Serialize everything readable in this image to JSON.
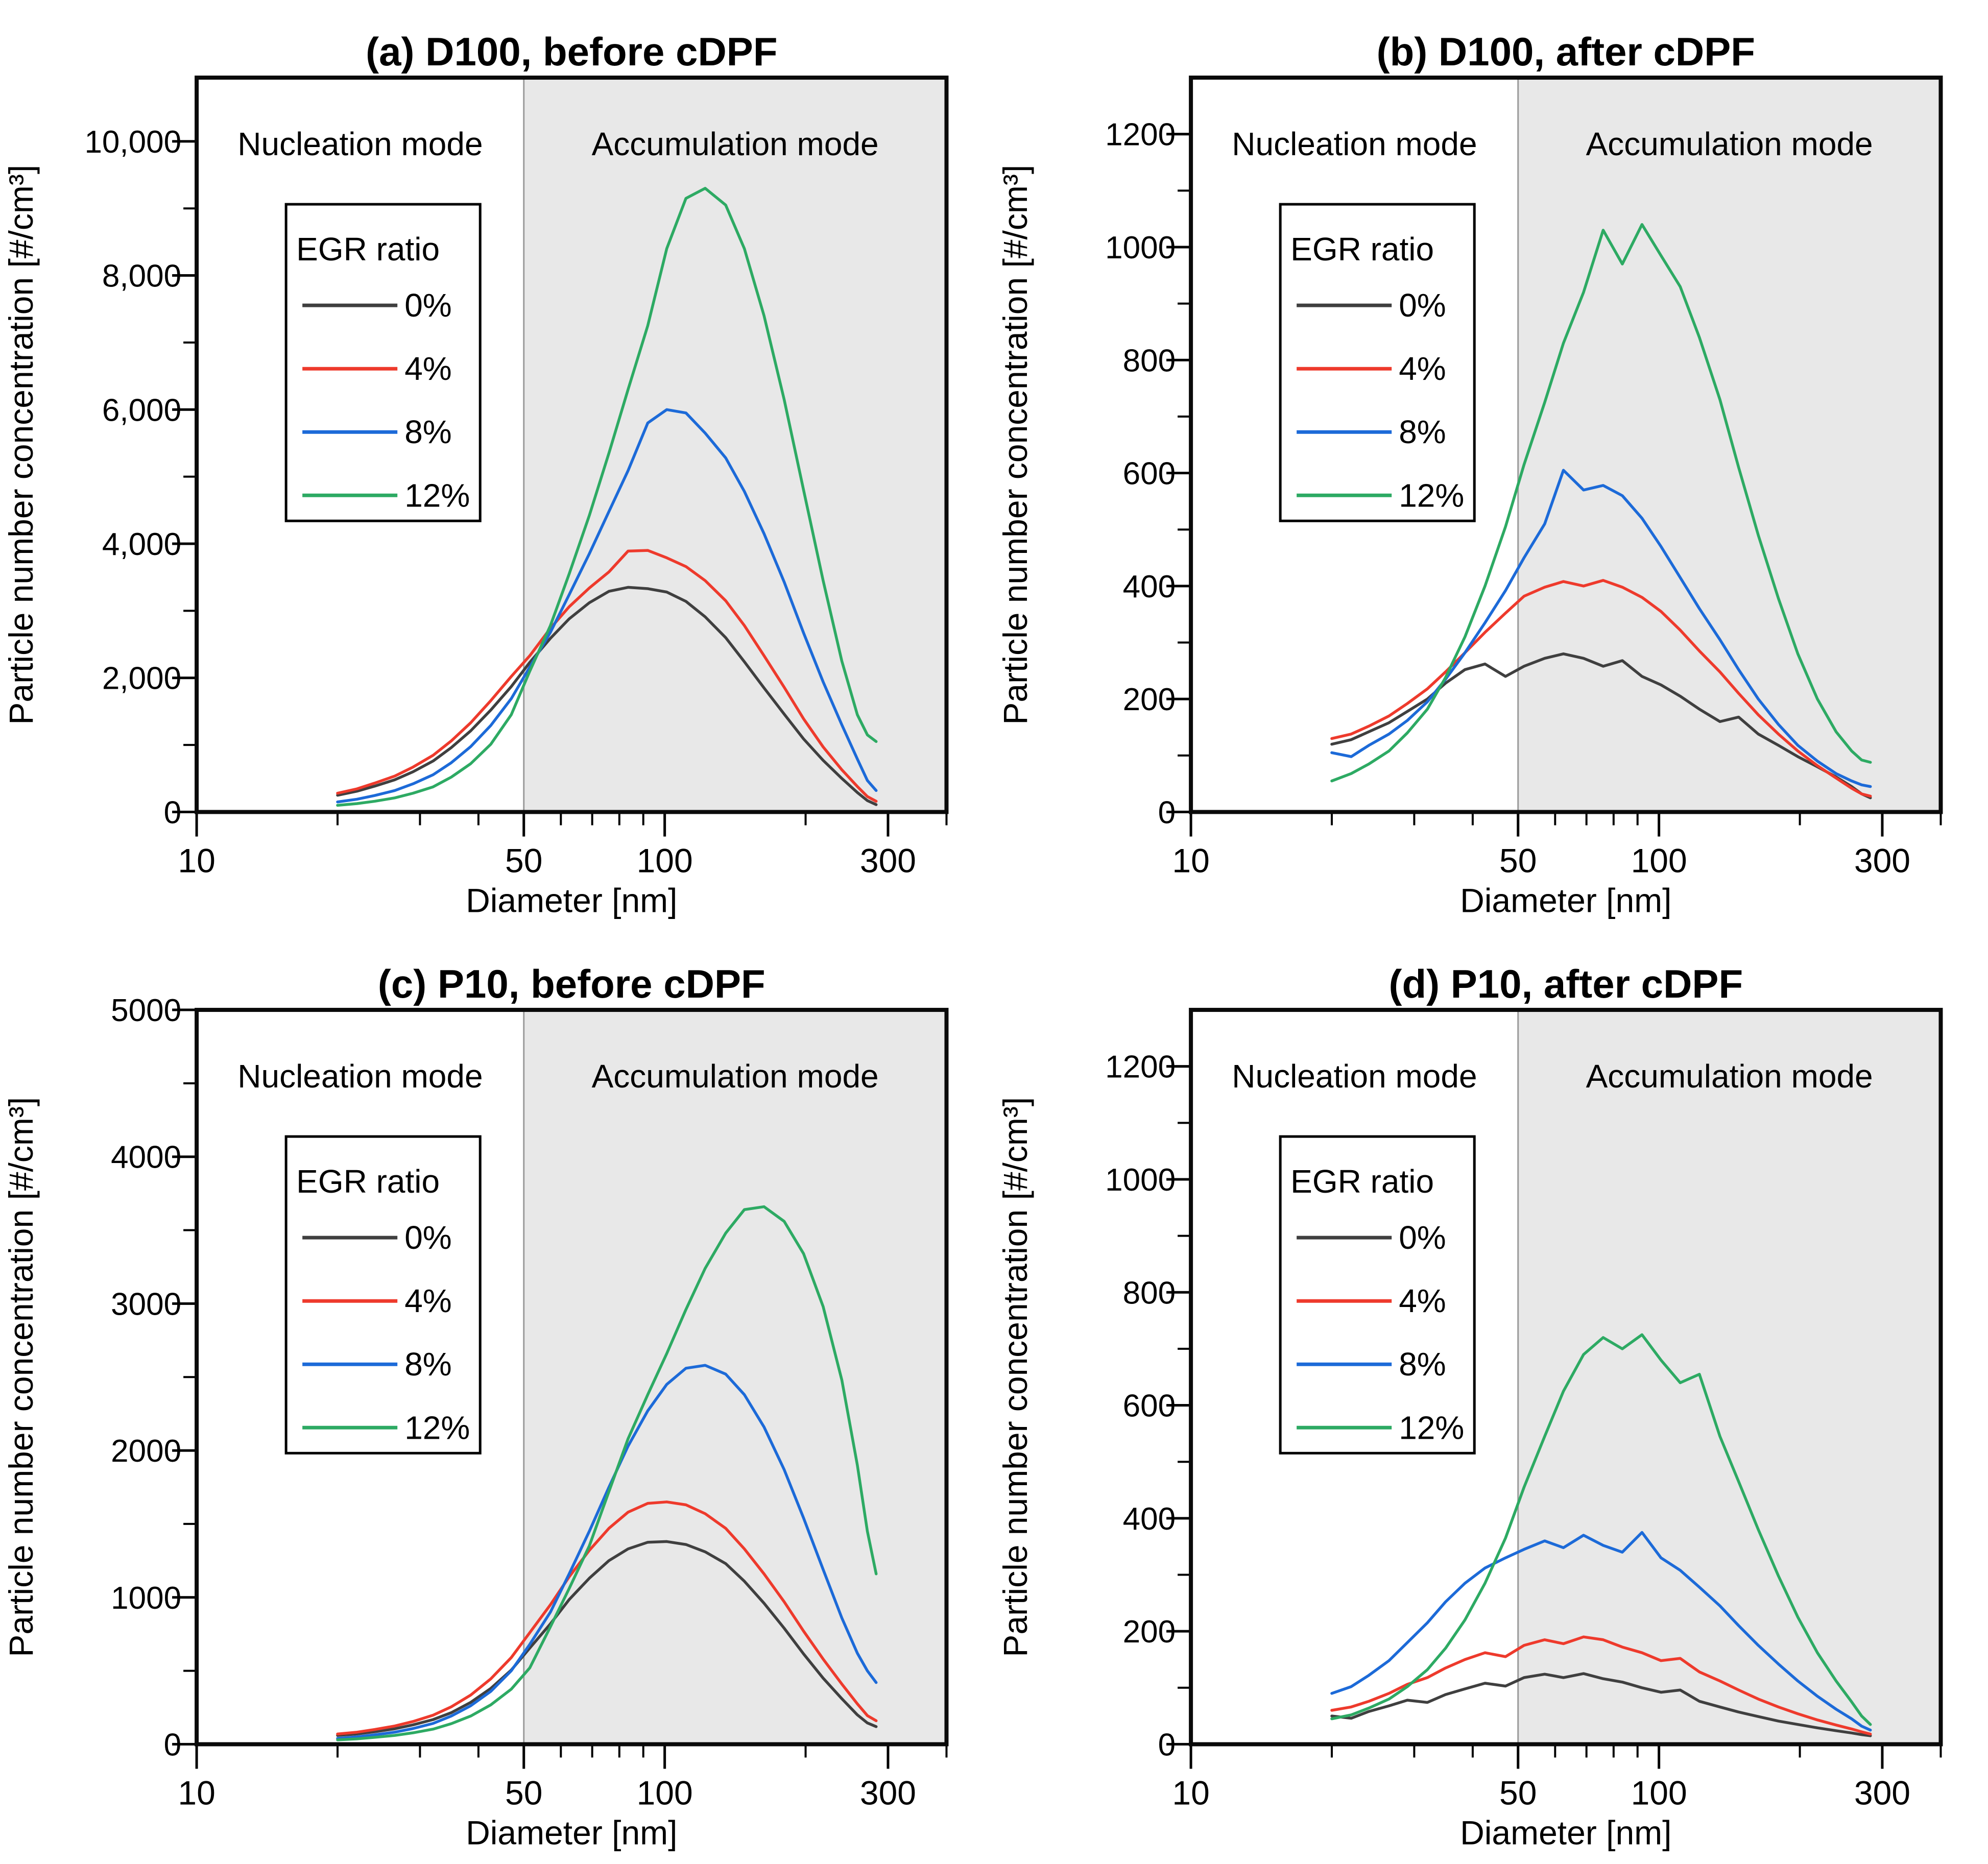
{
  "figure": {
    "layout": "2x2-panel-scientific-figure",
    "x_axis": {
      "label": "Diameter [nm]",
      "scale": "log",
      "range_nm": [
        10,
        400
      ],
      "major_ticks": [
        10,
        50,
        100,
        300
      ],
      "minor_ticks": [
        20,
        30,
        40,
        60,
        70,
        80,
        90,
        200,
        400
      ]
    },
    "y_axis_label": "Particle number concentration [#/cm³]",
    "regions": {
      "nucleation_label": "Nucleation mode",
      "accumulation_label": "Accumulation mode",
      "boundary_nm": 50,
      "shade_color": "#e8e8e8",
      "boundary_line_color": "#9b9b9b"
    },
    "legend": {
      "title": "EGR ratio"
    },
    "series_colors": {
      "0%": "#3f3f3f",
      "4%": "#ee3a2c",
      "8%": "#1c6ad8",
      "12%": "#2daa63"
    }
  },
  "chart_data": [
    {
      "id": "a",
      "type": "line",
      "title": "(a) D100, before cDPF",
      "xlabel": "Diameter [nm]",
      "ylabel": "Particle number concentration [#/cm³]",
      "ylim": [
        0,
        10950
      ],
      "y_label_max": 10000,
      "y_major_step": 2000,
      "y_minor_step": 1000,
      "y_tick_format": "comma",
      "x_nm": [
        20,
        22,
        24,
        26.5,
        29,
        32,
        35,
        38.5,
        42.5,
        47,
        51.5,
        57,
        62.5,
        69,
        76,
        83.5,
        92,
        101,
        111,
        122,
        135,
        148,
        163,
        180,
        198,
        218,
        239,
        258,
        271,
        283
      ],
      "series": [
        {
          "name": "0%",
          "color": "#3f3f3f",
          "values": [
            250,
            310,
            385,
            480,
            600,
            760,
            960,
            1210,
            1520,
            1870,
            2230,
            2590,
            2880,
            3120,
            3290,
            3350,
            3330,
            3280,
            3140,
            2910,
            2600,
            2240,
            1850,
            1460,
            1090,
            770,
            500,
            290,
            170,
            110
          ]
        },
        {
          "name": "4%",
          "color": "#ee3a2c",
          "values": [
            280,
            345,
            430,
            535,
            670,
            845,
            1060,
            1330,
            1660,
            2020,
            2330,
            2740,
            3060,
            3340,
            3580,
            3890,
            3900,
            3790,
            3660,
            3450,
            3150,
            2780,
            2330,
            1860,
            1390,
            970,
            630,
            380,
            230,
            160
          ]
        },
        {
          "name": "8%",
          "color": "#1c6ad8",
          "values": [
            150,
            190,
            245,
            320,
            420,
            555,
            735,
            975,
            1290,
            1690,
            2160,
            2680,
            3240,
            3850,
            4480,
            5090,
            5800,
            6000,
            5950,
            5650,
            5280,
            4780,
            4150,
            3430,
            2670,
            1940,
            1300,
            790,
            470,
            320
          ]
        },
        {
          "name": "12%",
          "color": "#2daa63",
          "values": [
            100,
            125,
            160,
            210,
            280,
            375,
            520,
            720,
            1010,
            1450,
            2100,
            2780,
            3550,
            4420,
            5350,
            6300,
            7250,
            8400,
            9150,
            9300,
            9050,
            8400,
            7400,
            6150,
            4800,
            3450,
            2250,
            1450,
            1150,
            1050
          ]
        }
      ]
    },
    {
      "id": "b",
      "type": "line",
      "title": "(b) D100, after cDPF",
      "xlabel": "Diameter [nm]",
      "ylabel": "Particle number concentration [#/cm³]",
      "ylim": [
        0,
        1300
      ],
      "y_label_max": 1200,
      "y_major_step": 200,
      "y_minor_step": 100,
      "y_tick_format": "plain",
      "x_nm": [
        20,
        22,
        24,
        26.5,
        29,
        32,
        35,
        38.5,
        42.5,
        47,
        51.5,
        57,
        62.5,
        69,
        76,
        83.5,
        92,
        101,
        111,
        122,
        135,
        148,
        163,
        180,
        198,
        218,
        239,
        258,
        271,
        283
      ],
      "series": [
        {
          "name": "0%",
          "color": "#3f3f3f",
          "values": [
            120,
            128,
            142,
            158,
            178,
            200,
            228,
            252,
            262,
            240,
            258,
            272,
            280,
            272,
            258,
            268,
            240,
            225,
            205,
            182,
            160,
            168,
            138,
            118,
            98,
            80,
            62,
            45,
            32,
            25
          ]
        },
        {
          "name": "4%",
          "color": "#ee3a2c",
          "values": [
            130,
            138,
            152,
            170,
            192,
            218,
            248,
            282,
            318,
            352,
            382,
            398,
            408,
            400,
            410,
            398,
            380,
            355,
            322,
            285,
            248,
            210,
            172,
            138,
            108,
            82,
            60,
            42,
            32,
            28
          ]
        },
        {
          "name": "8%",
          "color": "#1c6ad8",
          "values": [
            105,
            98,
            118,
            138,
            162,
            195,
            235,
            282,
            335,
            392,
            450,
            510,
            605,
            570,
            578,
            560,
            520,
            470,
            415,
            360,
            305,
            252,
            200,
            155,
            118,
            90,
            68,
            55,
            48,
            45
          ]
        },
        {
          "name": "12%",
          "color": "#2daa63",
          "values": [
            55,
            68,
            85,
            108,
            140,
            182,
            238,
            310,
            400,
            505,
            615,
            725,
            830,
            920,
            1030,
            970,
            1040,
            985,
            930,
            840,
            730,
            610,
            490,
            378,
            280,
            200,
            142,
            108,
            92,
            88
          ]
        }
      ]
    },
    {
      "id": "c",
      "type": "line",
      "title": "(c) P10, before cDPF",
      "xlabel": "Diameter [nm]",
      "ylabel": "Particle number concentration [#/cm³]",
      "ylim": [
        0,
        5000
      ],
      "y_label_max": 5000,
      "y_major_step": 1000,
      "y_minor_step": 500,
      "y_tick_format": "plain",
      "x_nm": [
        20,
        22,
        24,
        26.5,
        29,
        32,
        35,
        38.5,
        42.5,
        47,
        51.5,
        57,
        62.5,
        69,
        76,
        83.5,
        92,
        101,
        111,
        122,
        135,
        148,
        163,
        180,
        198,
        218,
        239,
        258,
        271,
        283
      ],
      "series": [
        {
          "name": "0%",
          "color": "#3f3f3f",
          "values": [
            60,
            70,
            85,
            105,
            132,
            168,
            215,
            285,
            380,
            505,
            655,
            820,
            985,
            1130,
            1250,
            1330,
            1375,
            1380,
            1360,
            1310,
            1230,
            1110,
            960,
            790,
            615,
            450,
            310,
            200,
            145,
            120
          ]
        },
        {
          "name": "4%",
          "color": "#ee3a2c",
          "values": [
            70,
            82,
            100,
            124,
            155,
            198,
            255,
            335,
            445,
            590,
            760,
            950,
            1140,
            1320,
            1470,
            1580,
            1640,
            1650,
            1630,
            1570,
            1470,
            1330,
            1160,
            970,
            770,
            580,
            410,
            275,
            195,
            160
          ]
        },
        {
          "name": "8%",
          "color": "#1c6ad8",
          "values": [
            40,
            50,
            64,
            82,
            107,
            142,
            192,
            262,
            360,
            500,
            680,
            900,
            1160,
            1450,
            1750,
            2030,
            2270,
            2450,
            2560,
            2580,
            2520,
            2380,
            2160,
            1870,
            1540,
            1190,
            860,
            620,
            500,
            420
          ]
        },
        {
          "name": "12%",
          "color": "#2daa63",
          "values": [
            30,
            37,
            47,
            60,
            78,
            103,
            140,
            192,
            268,
            375,
            520,
            800,
            1060,
            1350,
            1720,
            2080,
            2380,
            2660,
            2960,
            3240,
            3480,
            3640,
            3660,
            3560,
            3340,
            2980,
            2480,
            1900,
            1450,
            1160
          ]
        }
      ]
    },
    {
      "id": "d",
      "type": "line",
      "title": "(d) P10, after cDPF",
      "xlabel": "Diameter [nm]",
      "ylabel": "Particle number concentration [#/cm³]",
      "ylim": [
        0,
        1300
      ],
      "y_label_max": 1200,
      "y_major_step": 200,
      "y_minor_step": 100,
      "y_tick_format": "plain",
      "x_nm": [
        20,
        22,
        24,
        26.5,
        29,
        32,
        35,
        38.5,
        42.5,
        47,
        51.5,
        57,
        62.5,
        69,
        76,
        83.5,
        92,
        101,
        111,
        122,
        135,
        148,
        163,
        180,
        198,
        218,
        239,
        258,
        271,
        283
      ],
      "series": [
        {
          "name": "0%",
          "color": "#3f3f3f",
          "values": [
            50,
            46,
            58,
            68,
            78,
            74,
            88,
            98,
            108,
            103,
            118,
            124,
            118,
            125,
            116,
            110,
            100,
            92,
            96,
            76,
            66,
            57,
            49,
            41,
            35,
            29,
            24,
            20,
            17,
            15
          ]
        },
        {
          "name": "4%",
          "color": "#ee3a2c",
          "values": [
            60,
            66,
            76,
            90,
            106,
            118,
            135,
            150,
            162,
            155,
            175,
            185,
            178,
            190,
            185,
            172,
            162,
            148,
            152,
            128,
            112,
            96,
            80,
            66,
            54,
            43,
            34,
            27,
            22,
            18
          ]
        },
        {
          "name": "8%",
          "color": "#1c6ad8",
          "values": [
            90,
            102,
            122,
            148,
            180,
            215,
            252,
            285,
            312,
            330,
            345,
            360,
            348,
            370,
            352,
            340,
            375,
            330,
            308,
            278,
            245,
            210,
            175,
            142,
            112,
            85,
            62,
            45,
            32,
            25
          ]
        },
        {
          "name": "12%",
          "color": "#2daa63",
          "values": [
            45,
            52,
            64,
            80,
            102,
            132,
            170,
            220,
            285,
            365,
            455,
            545,
            625,
            690,
            720,
            700,
            725,
            680,
            640,
            655,
            545,
            465,
            380,
            298,
            225,
            162,
            112,
            75,
            50,
            35
          ]
        }
      ]
    }
  ]
}
